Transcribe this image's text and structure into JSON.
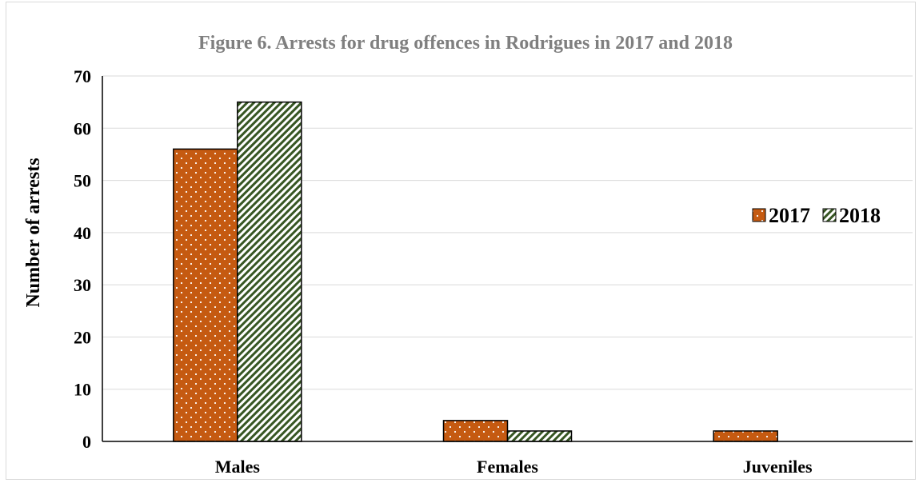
{
  "chart_data": {
    "type": "bar",
    "title": "Figure 6. Arrests for drug offences in Rodrigues in 2017 and 2018",
    "xlabel": "",
    "ylabel": "Number of arrests",
    "categories": [
      "Males",
      "Females",
      "Juveniles"
    ],
    "series": [
      {
        "name": "2017",
        "values": [
          56,
          4,
          2
        ],
        "color": "#c55a11",
        "pattern": "white-dots"
      },
      {
        "name": "2018",
        "values": [
          65,
          2,
          0
        ],
        "color": "#375623",
        "pattern": "diagonal-stripes"
      }
    ],
    "ylim": [
      0,
      70
    ],
    "yticks": [
      "0",
      "10",
      "20",
      "30",
      "40",
      "50",
      "60",
      "70"
    ],
    "grid": true,
    "legend_position": "right"
  }
}
